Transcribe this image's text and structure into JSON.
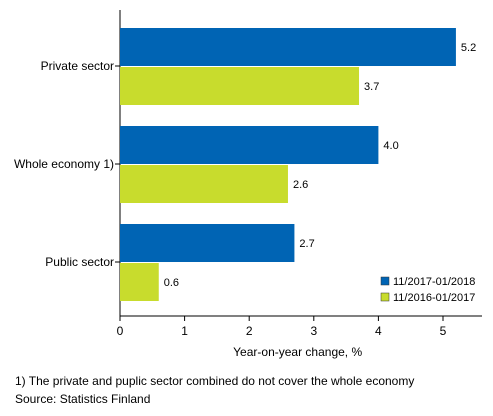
{
  "chart_data": {
    "type": "bar",
    "orientation": "horizontal",
    "categories": [
      "Private sector",
      "Whole economy 1)",
      "Public sector"
    ],
    "series": [
      {
        "name": "11/2017-01/2018",
        "values": [
          5.2,
          4.0,
          2.7
        ],
        "color": "#0064b4"
      },
      {
        "name": "11/2016-01/2017",
        "values": [
          3.7,
          2.6,
          0.6
        ],
        "color": "#c8dc2d"
      }
    ],
    "value_labels": [
      [
        "5.2",
        "4.0",
        "2.7"
      ],
      [
        "3.7",
        "2.6",
        "0.6"
      ]
    ],
    "xlabel": "Year-on-year change, %",
    "xlim": [
      0,
      5.5
    ],
    "xticks": [
      0,
      1,
      2,
      3,
      4,
      5
    ],
    "xtick_labels": [
      "0",
      "1",
      "2",
      "3",
      "4",
      "5"
    ],
    "legend_position": "bottom-right",
    "grid": false
  },
  "notes": {
    "footnote": "1) The private and puplic sector combined do not cover the whole economy",
    "source": "Source: Statistics Finland"
  }
}
